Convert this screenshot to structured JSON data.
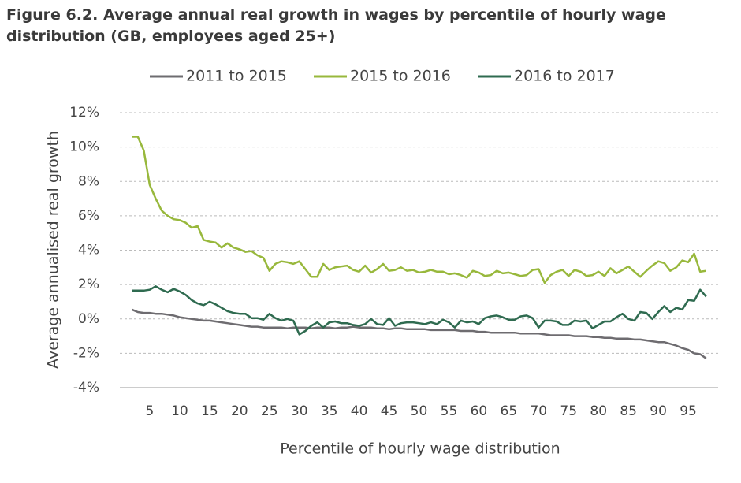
{
  "chart_data": {
    "type": "line",
    "title": "Figure 6.2. Average annual real growth in wages by percentile of hourly wage distribution (GB, employees aged 25+)",
    "x_label": "Percentile of hourly wage distribution",
    "y_label": "Average annualised real growth",
    "x": [
      2,
      3,
      4,
      5,
      6,
      7,
      8,
      9,
      10,
      11,
      12,
      13,
      14,
      15,
      16,
      17,
      18,
      19,
      20,
      21,
      22,
      23,
      24,
      25,
      26,
      27,
      28,
      29,
      30,
      31,
      32,
      33,
      34,
      35,
      36,
      37,
      38,
      39,
      40,
      41,
      42,
      43,
      44,
      45,
      46,
      47,
      48,
      49,
      50,
      51,
      52,
      53,
      54,
      55,
      56,
      57,
      58,
      59,
      60,
      61,
      62,
      63,
      64,
      65,
      66,
      67,
      68,
      69,
      70,
      71,
      72,
      73,
      74,
      75,
      76,
      77,
      78,
      79,
      80,
      81,
      82,
      83,
      84,
      85,
      86,
      87,
      88,
      89,
      90,
      91,
      92,
      93,
      94,
      95,
      96,
      97,
      98
    ],
    "series": [
      {
        "name": "2011 to 2015",
        "color": "#6e6c70",
        "values": [
          0.55,
          0.4,
          0.35,
          0.35,
          0.3,
          0.3,
          0.25,
          0.2,
          0.1,
          0.05,
          0.0,
          -0.05,
          -0.1,
          -0.1,
          -0.15,
          -0.2,
          -0.25,
          -0.3,
          -0.35,
          -0.4,
          -0.45,
          -0.45,
          -0.5,
          -0.5,
          -0.5,
          -0.5,
          -0.55,
          -0.5,
          -0.5,
          -0.5,
          -0.55,
          -0.5,
          -0.5,
          -0.5,
          -0.55,
          -0.5,
          -0.5,
          -0.45,
          -0.5,
          -0.5,
          -0.5,
          -0.55,
          -0.55,
          -0.6,
          -0.55,
          -0.55,
          -0.6,
          -0.6,
          -0.6,
          -0.6,
          -0.65,
          -0.65,
          -0.65,
          -0.65,
          -0.65,
          -0.7,
          -0.7,
          -0.7,
          -0.75,
          -0.75,
          -0.8,
          -0.8,
          -0.8,
          -0.8,
          -0.8,
          -0.85,
          -0.85,
          -0.85,
          -0.85,
          -0.9,
          -0.95,
          -0.95,
          -0.95,
          -0.95,
          -1.0,
          -1.0,
          -1.0,
          -1.05,
          -1.05,
          -1.1,
          -1.1,
          -1.15,
          -1.15,
          -1.15,
          -1.2,
          -1.2,
          -1.25,
          -1.3,
          -1.35,
          -1.35,
          -1.45,
          -1.55,
          -1.7,
          -1.8,
          -2.0,
          -2.05,
          -2.3
        ]
      },
      {
        "name": "2015 to 2016",
        "color": "#98b83c",
        "values": [
          10.6,
          10.6,
          9.8,
          7.8,
          7.0,
          6.3,
          6.0,
          5.8,
          5.75,
          5.6,
          5.3,
          5.4,
          4.6,
          4.5,
          4.45,
          4.15,
          4.4,
          4.15,
          4.05,
          3.9,
          3.95,
          3.7,
          3.55,
          2.8,
          3.2,
          3.35,
          3.3,
          3.2,
          3.35,
          2.9,
          2.45,
          2.45,
          3.2,
          2.85,
          3.0,
          3.05,
          3.1,
          2.85,
          2.75,
          3.1,
          2.7,
          2.9,
          3.2,
          2.8,
          2.85,
          3.0,
          2.8,
          2.85,
          2.7,
          2.75,
          2.85,
          2.75,
          2.75,
          2.6,
          2.65,
          2.55,
          2.4,
          2.8,
          2.7,
          2.5,
          2.55,
          2.8,
          2.65,
          2.7,
          2.6,
          2.5,
          2.55,
          2.85,
          2.9,
          2.1,
          2.55,
          2.75,
          2.85,
          2.5,
          2.85,
          2.75,
          2.5,
          2.55,
          2.75,
          2.5,
          2.95,
          2.65,
          2.85,
          3.05,
          2.75,
          2.45,
          2.8,
          3.1,
          3.35,
          3.25,
          2.8,
          3.0,
          3.4,
          3.3,
          3.8,
          2.75,
          2.8
        ]
      },
      {
        "name": "2016 to 2017",
        "color": "#2f6b50",
        "values": [
          1.65,
          1.65,
          1.65,
          1.7,
          1.9,
          1.7,
          1.55,
          1.75,
          1.6,
          1.4,
          1.1,
          0.9,
          0.8,
          1.0,
          0.85,
          0.65,
          0.45,
          0.35,
          0.3,
          0.3,
          0.05,
          0.05,
          -0.05,
          0.3,
          0.05,
          -0.1,
          0.0,
          -0.1,
          -0.9,
          -0.7,
          -0.4,
          -0.2,
          -0.5,
          -0.2,
          -0.15,
          -0.25,
          -0.25,
          -0.35,
          -0.4,
          -0.3,
          0.0,
          -0.3,
          -0.35,
          0.05,
          -0.4,
          -0.25,
          -0.2,
          -0.2,
          -0.25,
          -0.3,
          -0.2,
          -0.3,
          -0.05,
          -0.2,
          -0.5,
          -0.1,
          -0.2,
          -0.15,
          -0.3,
          0.05,
          0.15,
          0.2,
          0.1,
          -0.05,
          -0.05,
          0.15,
          0.2,
          0.05,
          -0.5,
          -0.1,
          -0.1,
          -0.15,
          -0.35,
          -0.35,
          -0.1,
          -0.15,
          -0.1,
          -0.55,
          -0.35,
          -0.15,
          -0.15,
          0.1,
          0.3,
          0.0,
          -0.1,
          0.4,
          0.35,
          0.0,
          0.4,
          0.75,
          0.4,
          0.65,
          0.55,
          1.1,
          1.05,
          1.7,
          1.3
        ]
      }
    ],
    "xlim": [
      0,
      100
    ],
    "xticks": [
      5,
      10,
      15,
      20,
      25,
      30,
      35,
      40,
      45,
      50,
      55,
      60,
      65,
      70,
      75,
      80,
      85,
      90,
      95
    ],
    "ylim": [
      -4,
      12
    ],
    "yticks": [
      {
        "value": -4,
        "label": "-4%"
      },
      {
        "value": -2,
        "label": "-2%"
      },
      {
        "value": 0,
        "label": "0%"
      },
      {
        "value": 2,
        "label": "2%"
      },
      {
        "value": 4,
        "label": "4%"
      },
      {
        "value": 6,
        "label": "6%"
      },
      {
        "value": 8,
        "label": "8%"
      },
      {
        "value": 10,
        "label": "10%"
      },
      {
        "value": 12,
        "label": "12%"
      }
    ],
    "grid": true,
    "legend": "top"
  }
}
